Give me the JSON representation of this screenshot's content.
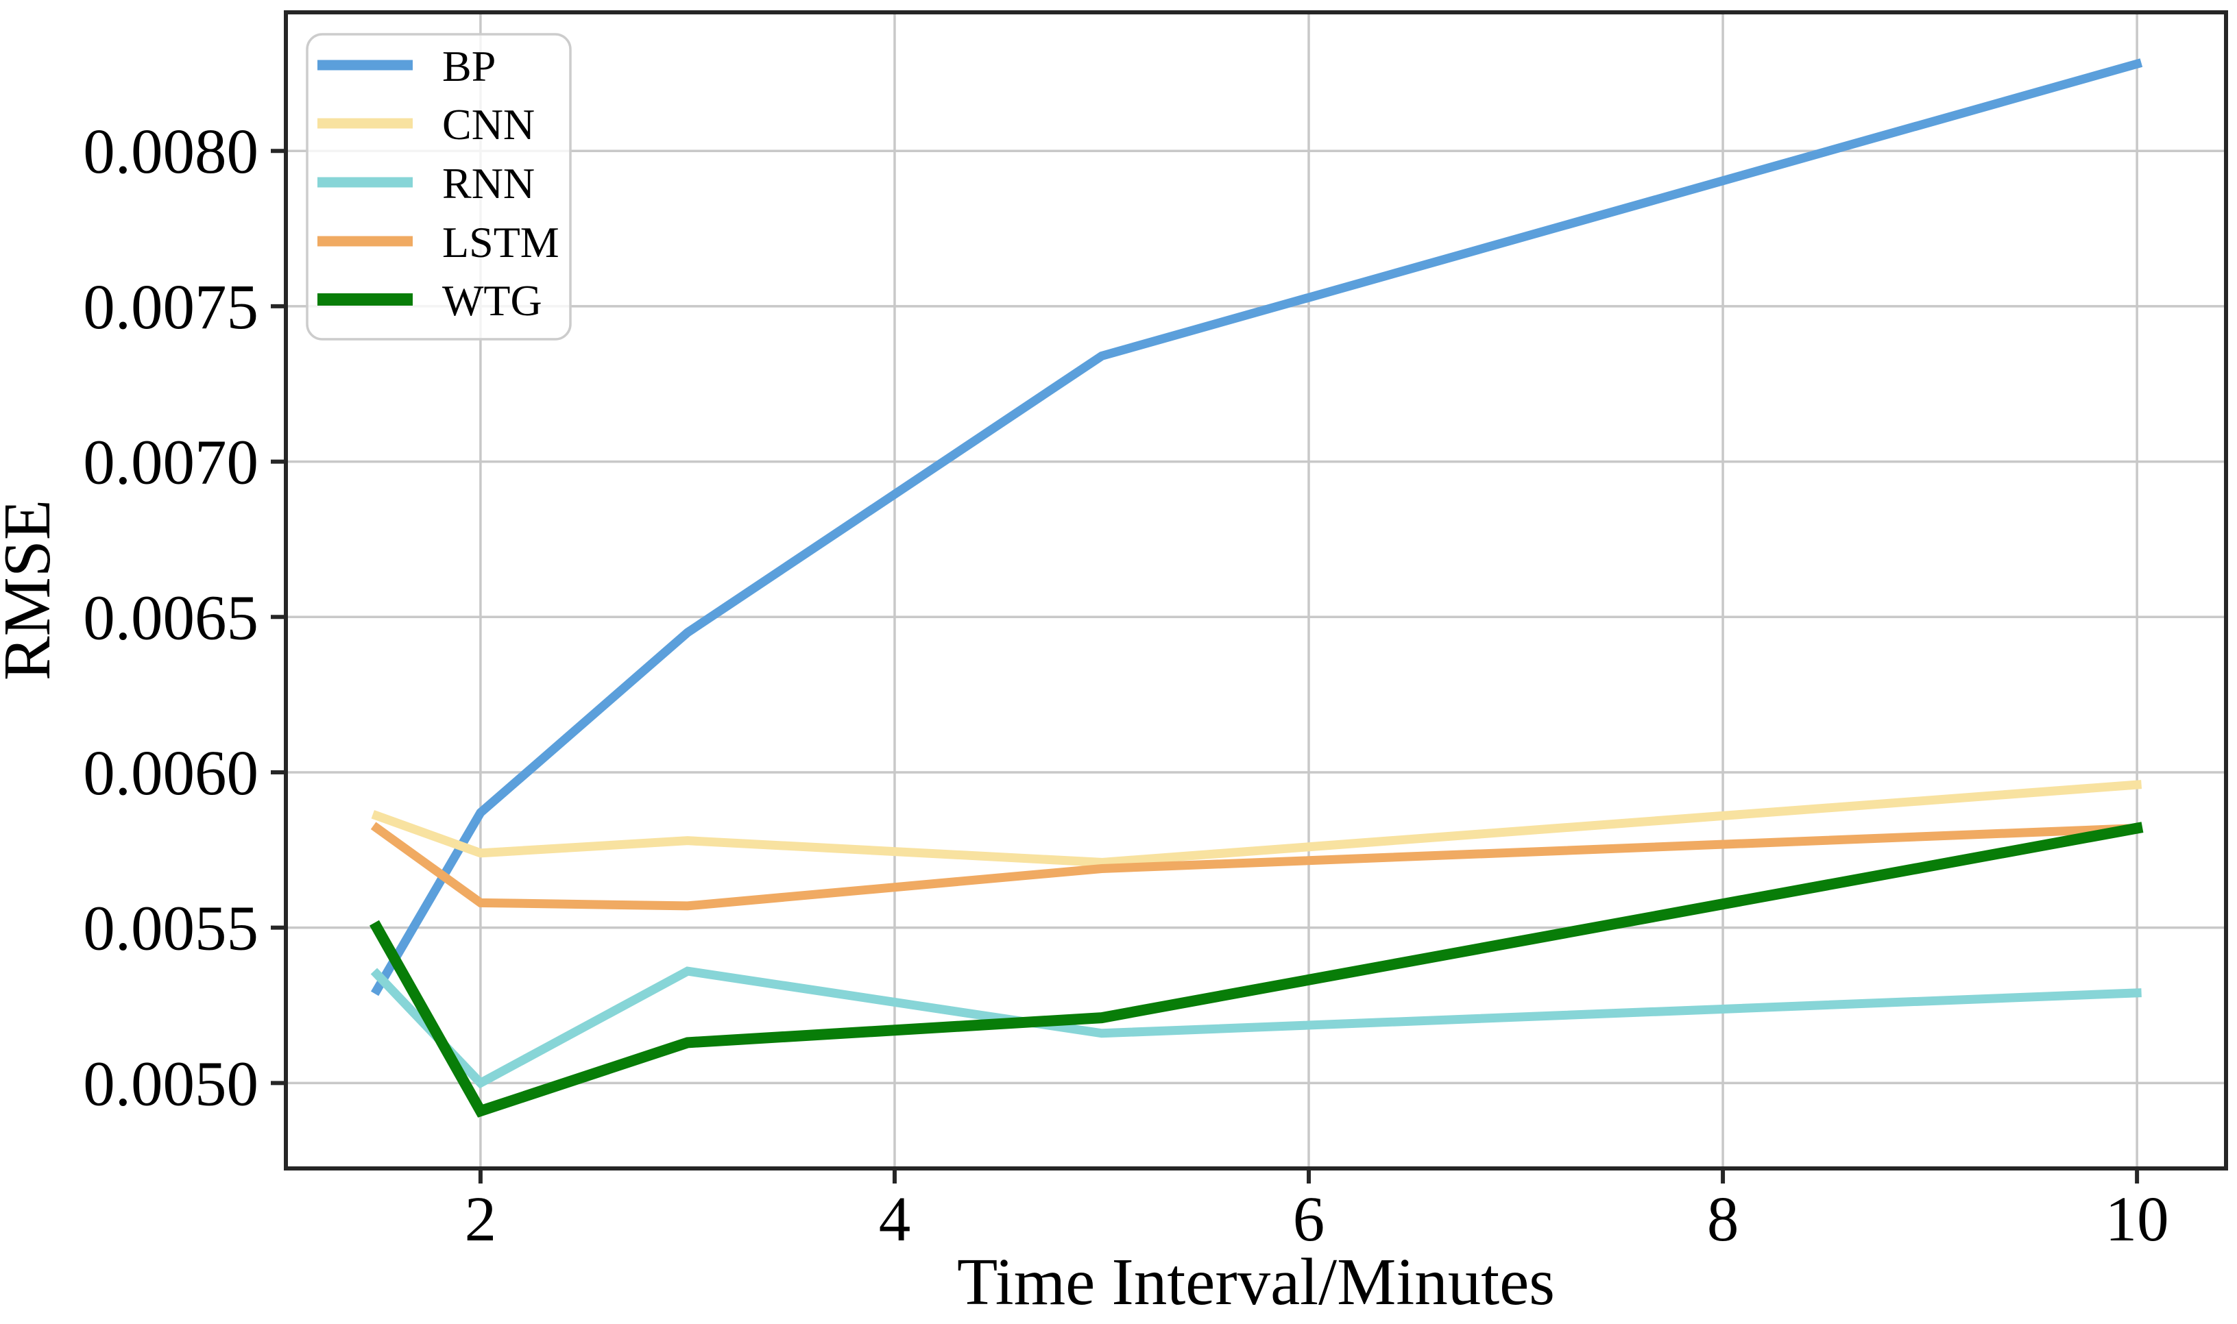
{
  "figure": {
    "background": "#ffffff",
    "spine_color": "#262626",
    "grid_color": "#c8c8c8",
    "tick_label_color": "#000000"
  },
  "chart_data": {
    "type": "line",
    "title": "",
    "xlabel": "Time Interval/Minutes",
    "ylabel": "RMSE",
    "x": [
      1.5,
      2,
      3,
      5,
      10
    ],
    "series": [
      {
        "name": "BP",
        "color": "#5b9fdb",
        "linewidth": 13,
        "values": [
          0.0053,
          0.00587,
          0.00645,
          0.00734,
          0.00828
        ]
      },
      {
        "name": "CNN",
        "color": "#f8e2a0",
        "linewidth": 13,
        "values": [
          0.00586,
          0.00574,
          0.00578,
          0.00571,
          0.00596
        ]
      },
      {
        "name": "RNN",
        "color": "#87d5d7",
        "linewidth": 13,
        "values": [
          0.00535,
          0.005,
          0.00536,
          0.00516,
          0.00529
        ]
      },
      {
        "name": "LSTM",
        "color": "#f0aa62",
        "linewidth": 13,
        "values": [
          0.00582,
          0.00558,
          0.00557,
          0.00569,
          0.00582
        ]
      },
      {
        "name": "WTG",
        "color": "#087d08",
        "linewidth": 16,
        "values": [
          0.0055,
          0.00491,
          0.00513,
          0.00521,
          0.00582
        ]
      }
    ],
    "x_ticks": [
      2,
      4,
      6,
      8,
      10
    ],
    "x_tick_labels": [
      "2",
      "4",
      "6",
      "8",
      "10"
    ],
    "y_ticks": [
      0.005,
      0.0055,
      0.006,
      0.0065,
      0.007,
      0.0075,
      0.008
    ],
    "y_tick_labels": [
      "0.0050",
      "0.0055",
      "0.0060",
      "0.0065",
      "0.0070",
      "0.0075",
      "0.0080"
    ],
    "xlim": [
      1.06,
      10.43
    ],
    "ylim": [
      0.004725,
      0.008446
    ],
    "grid": true,
    "legend_position": "upper left",
    "legend_labels": [
      "BP",
      "CNN",
      "RNN",
      "LSTM",
      "WTG"
    ]
  }
}
